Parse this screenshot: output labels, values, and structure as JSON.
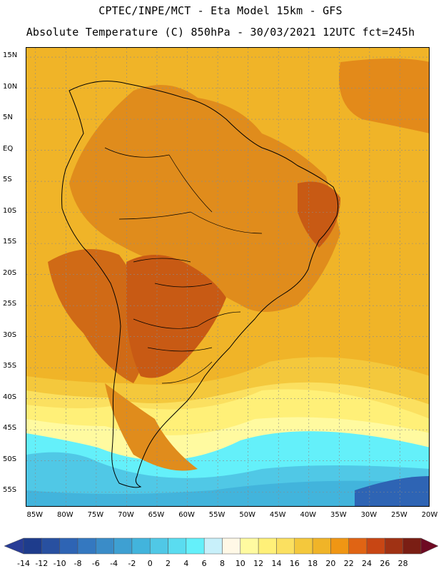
{
  "header": {
    "line1": "CPTEC/INPE/MCT -  Eta Model 15km - GFS",
    "line2": "Absolute Temperature (C) 850hPa - 30/03/2021 12UTC fct=245h"
  },
  "map": {
    "lat_labels": [
      "15N",
      "10N",
      "5N",
      "EQ",
      "5S",
      "10S",
      "15S",
      "20S",
      "25S",
      "30S",
      "35S",
      "40S",
      "45S",
      "50S",
      "55S"
    ],
    "lon_labels": [
      "85W",
      "80W",
      "75W",
      "70W",
      "65W",
      "60W",
      "55W",
      "50W",
      "45W",
      "40W",
      "35W",
      "30W",
      "25W",
      "20W"
    ],
    "lat_range": [
      -57.5,
      16.5
    ],
    "lon_range": [
      -86.5,
      -20
    ]
  },
  "legend": {
    "labels": [
      "-14",
      "-12",
      "-10",
      "-8",
      "-6",
      "-4",
      "-2",
      "0",
      "2",
      "4",
      "6",
      "8",
      "10",
      "12",
      "14",
      "16",
      "18",
      "20",
      "22",
      "24",
      "26",
      "28"
    ],
    "colors": [
      "#1e3c8c",
      "#2850a0",
      "#2e64b4",
      "#3478c0",
      "#3a8cc8",
      "#3ea0d2",
      "#42b4dc",
      "#50c8e6",
      "#5adcf0",
      "#64f0fa",
      "#c8f0fa",
      "#fff8e6",
      "#fffaa0",
      "#fff078",
      "#fbe060",
      "#f4c83c",
      "#f0b428",
      "#f09614",
      "#e06414",
      "#c84614",
      "#a03214",
      "#7a1e14"
    ],
    "below_color": "#283c96",
    "above_color": "#6e0a23"
  }
}
